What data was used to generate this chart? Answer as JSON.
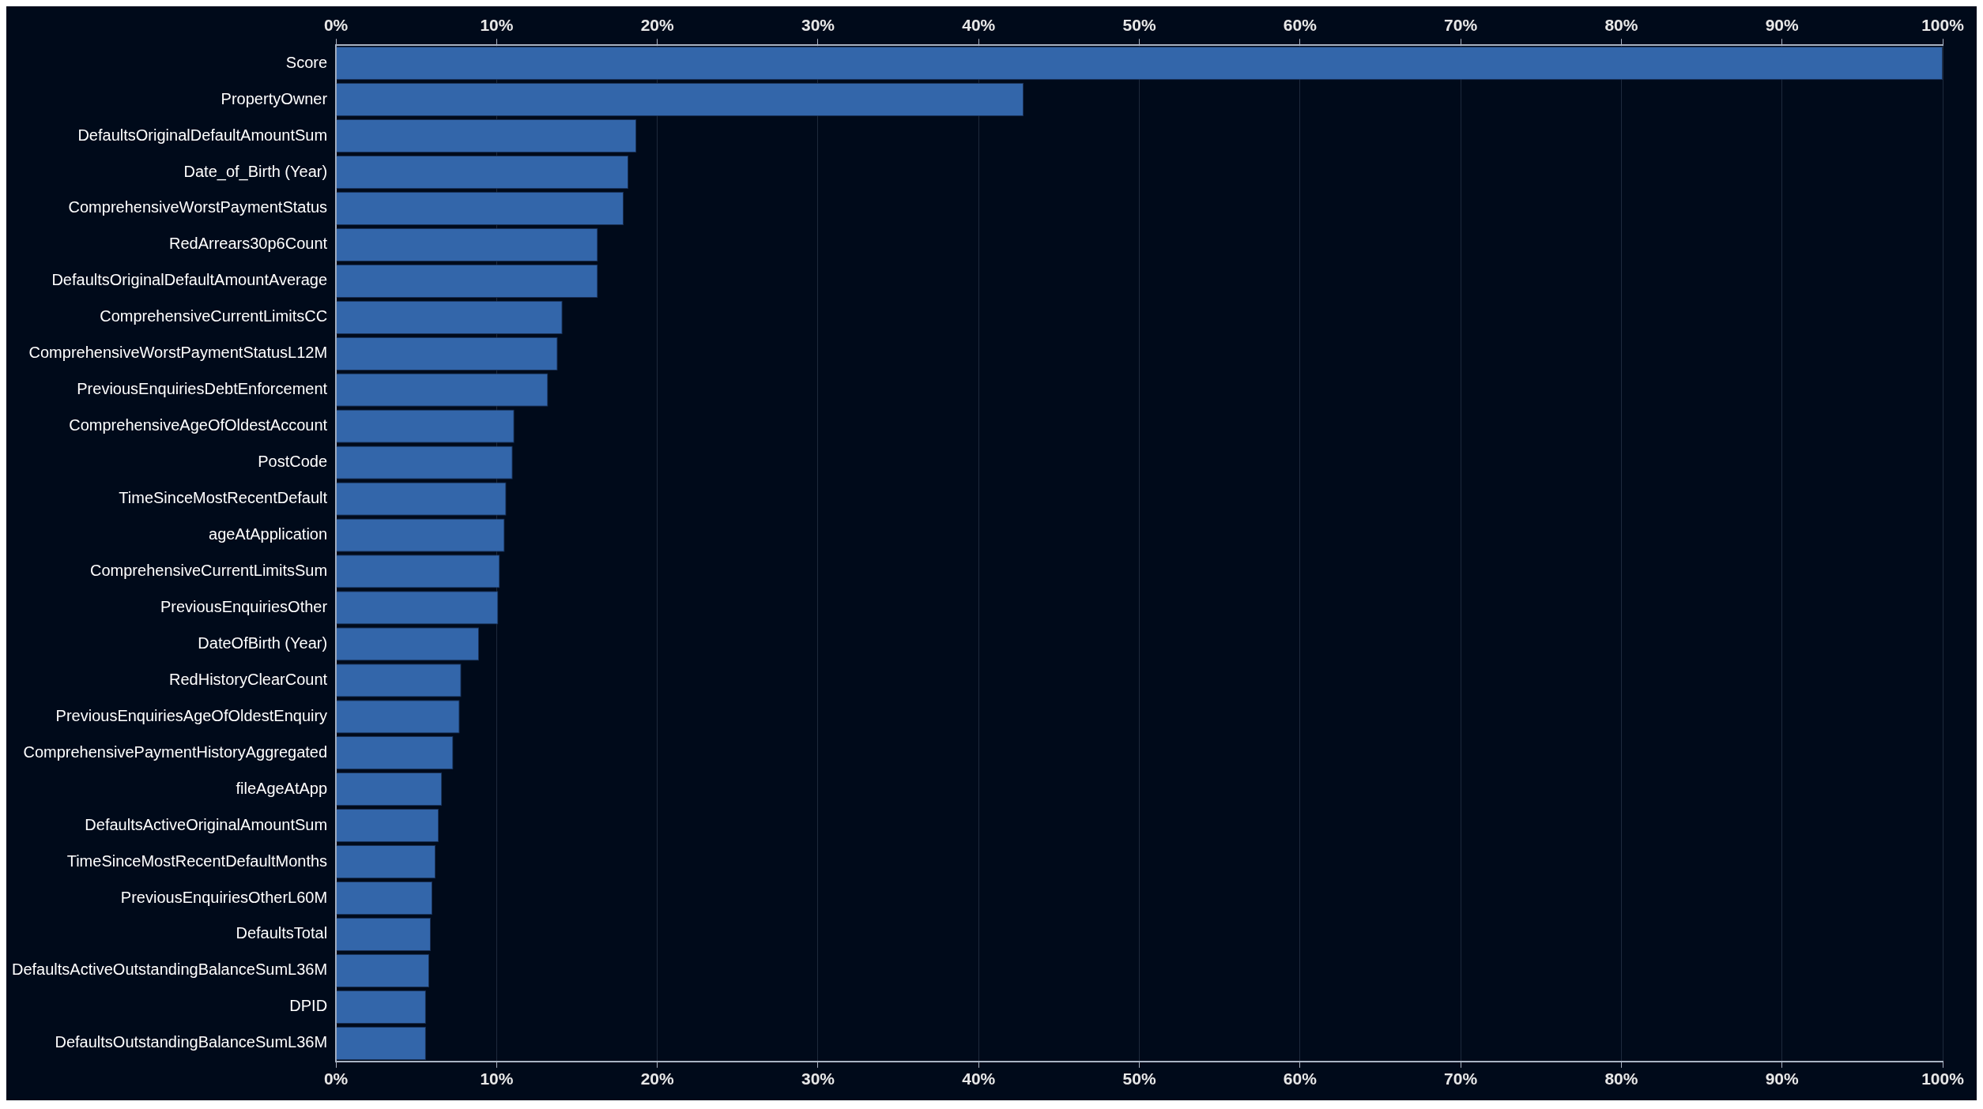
{
  "chart_data": {
    "type": "bar",
    "orientation": "horizontal",
    "categories": [
      "Score",
      "PropertyOwner",
      "DefaultsOriginalDefaultAmountSum",
      "Date_of_Birth (Year)",
      "ComprehensiveWorstPaymentStatus",
      "RedArrears30p6Count",
      "DefaultsOriginalDefaultAmountAverage",
      "ComprehensiveCurrentLimitsCC",
      "ComprehensiveWorstPaymentStatusL12M",
      "PreviousEnquiriesDebtEnforcement",
      "ComprehensiveAgeOfOldestAccount",
      "PostCode",
      "TimeSinceMostRecentDefault",
      "ageAtApplication",
      "ComprehensiveCurrentLimitsSum",
      "PreviousEnquiriesOther",
      "DateOfBirth (Year)",
      "RedHistoryClearCount",
      "PreviousEnquiriesAgeOfOldestEnquiry",
      "ComprehensivePaymentHistoryAggregated",
      "fileAgeAtApp",
      "DefaultsActiveOriginalAmountSum",
      "TimeSinceMostRecentDefaultMonths",
      "PreviousEnquiriesOtherL60M",
      "DefaultsTotal",
      "DefaultsActiveOutstandingBalanceSumL36M",
      "DPID",
      "DefaultsOutstandingBalanceSumL36M"
    ],
    "values": [
      100,
      42.8,
      18.7,
      18.2,
      17.9,
      16.3,
      16.3,
      14.1,
      13.8,
      13.2,
      11.1,
      11.0,
      10.6,
      10.5,
      10.2,
      10.1,
      8.9,
      7.8,
      7.7,
      7.3,
      6.6,
      6.4,
      6.2,
      6.0,
      5.9,
      5.8,
      5.6,
      5.6
    ],
    "color": "#3366aa",
    "xlim": [
      0,
      100
    ],
    "xticks": [
      {
        "value": 0,
        "label": "0%"
      },
      {
        "value": 10,
        "label": "10%"
      },
      {
        "value": 20,
        "label": "20%"
      },
      {
        "value": 30,
        "label": "30%"
      },
      {
        "value": 40,
        "label": "40%"
      },
      {
        "value": 50,
        "label": "50%"
      },
      {
        "value": 60,
        "label": "60%"
      },
      {
        "value": 70,
        "label": "70%"
      },
      {
        "value": 80,
        "label": "80%"
      },
      {
        "value": 90,
        "label": "90%"
      },
      {
        "value": 100,
        "label": "100%"
      }
    ],
    "x2lim": [
      0,
      100
    ],
    "x2ticks": [
      {
        "value": 0,
        "label": "0%"
      },
      {
        "value": 10,
        "label": "10%"
      },
      {
        "value": 20,
        "label": "20%"
      },
      {
        "value": 30,
        "label": "30%"
      },
      {
        "value": 40,
        "label": "40%"
      },
      {
        "value": 50,
        "label": "50%"
      },
      {
        "value": 60,
        "label": "60%"
      },
      {
        "value": 70,
        "label": "70%"
      },
      {
        "value": 80,
        "label": "80%"
      },
      {
        "value": 90,
        "label": "90%"
      },
      {
        "value": 100,
        "label": "100%"
      }
    ],
    "grid": "x",
    "legend": false
  }
}
